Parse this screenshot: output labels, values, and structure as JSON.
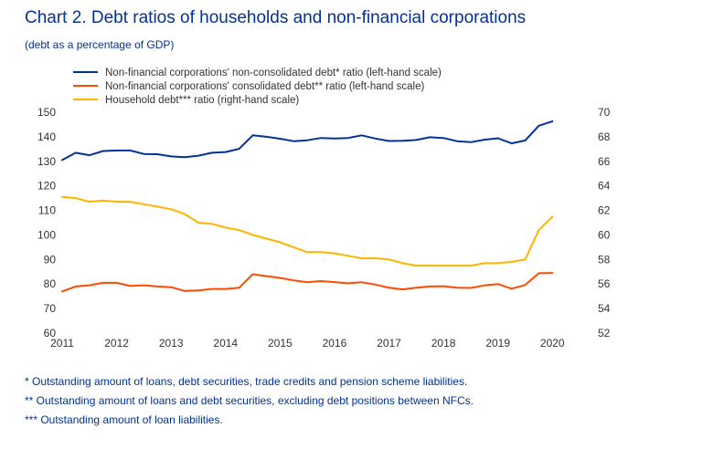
{
  "title": "Chart 2. Debt ratios of households and non-financial corporations",
  "subtitle": "(debt as a percentage of GDP)",
  "chart_data": {
    "type": "line",
    "x_ticks": [
      "2011",
      "2012",
      "2013",
      "2014",
      "2015",
      "2016",
      "2017",
      "2018",
      "2019",
      "2020"
    ],
    "xlim": [
      2011,
      2020.6
    ],
    "left_axis": {
      "ylim": [
        60,
        150
      ],
      "ticks": [
        "60",
        "70",
        "80",
        "90",
        "100",
        "110",
        "120",
        "130",
        "140",
        "150"
      ]
    },
    "right_axis": {
      "ylim": [
        52,
        70
      ],
      "ticks": [
        "52",
        "54",
        "56",
        "58",
        "60",
        "62",
        "64",
        "66",
        "68",
        "70"
      ]
    },
    "grid": false,
    "legend_position": "top-left",
    "x": [
      2011.0,
      2011.25,
      2011.5,
      2011.75,
      2012.0,
      2012.25,
      2012.5,
      2012.75,
      2013.0,
      2013.25,
      2013.5,
      2013.75,
      2014.0,
      2014.25,
      2014.5,
      2014.75,
      2015.0,
      2015.25,
      2015.5,
      2015.75,
      2016.0,
      2016.25,
      2016.5,
      2016.75,
      2017.0,
      2017.25,
      2017.5,
      2017.75,
      2018.0,
      2018.25,
      2018.5,
      2018.75,
      2019.0,
      2019.25,
      2019.5,
      2019.75,
      2020.0,
      2020.25
    ],
    "series": [
      {
        "name": "Non-financial corporations' non-consolidated debt* ratio (left-hand scale)",
        "color": "#003299",
        "axis": "left",
        "values": [
          130.5,
          133.5,
          132.5,
          134.2,
          134.4,
          134.4,
          133.0,
          132.9,
          132.0,
          131.7,
          132.3,
          133.5,
          133.8,
          135.1,
          140.6,
          140.0,
          139.2,
          138.2,
          138.6,
          139.5,
          139.3,
          139.5,
          140.6,
          139.3,
          138.3,
          138.4,
          138.7,
          139.8,
          139.5,
          138.2,
          137.8,
          138.8,
          139.4,
          137.3,
          138.5,
          144.5,
          146.3,
          null
        ]
      },
      {
        "name": "Non-financial corporations' consolidated debt** ratio (left-hand scale)",
        "color": "#ff4b00",
        "axis": "left",
        "values": [
          77.0,
          79.0,
          79.5,
          80.5,
          80.5,
          79.2,
          79.5,
          79.0,
          78.7,
          77.2,
          77.4,
          78.0,
          78.0,
          78.5,
          84.0,
          83.2,
          82.5,
          81.5,
          80.7,
          81.2,
          80.8,
          80.3,
          80.7,
          79.8,
          78.5,
          77.8,
          78.5,
          79.0,
          79.1,
          78.5,
          78.4,
          79.4,
          80.0,
          78.1,
          79.6,
          84.4,
          84.5,
          null
        ]
      },
      {
        "name": "Household debt*** ratio (right-hand scale)",
        "color": "#ffb400",
        "axis": "right",
        "values": [
          63.1,
          63.0,
          62.7,
          62.8,
          62.7,
          62.7,
          62.5,
          62.3,
          62.1,
          61.7,
          61.0,
          60.9,
          60.6,
          60.4,
          60.0,
          59.7,
          59.4,
          59.0,
          58.6,
          58.6,
          58.5,
          58.3,
          58.1,
          58.1,
          58.0,
          57.7,
          57.5,
          57.5,
          57.5,
          57.5,
          57.5,
          57.7,
          57.7,
          57.8,
          58.0,
          60.4,
          61.5,
          null
        ]
      }
    ]
  },
  "notes": [
    "* Outstanding amount of loans, debt securities, trade credits and pension scheme liabilities.",
    "** Outstanding amount of loans and debt securities, excluding debt positions between NFCs.",
    "*** Outstanding amount of loan liabilities."
  ]
}
